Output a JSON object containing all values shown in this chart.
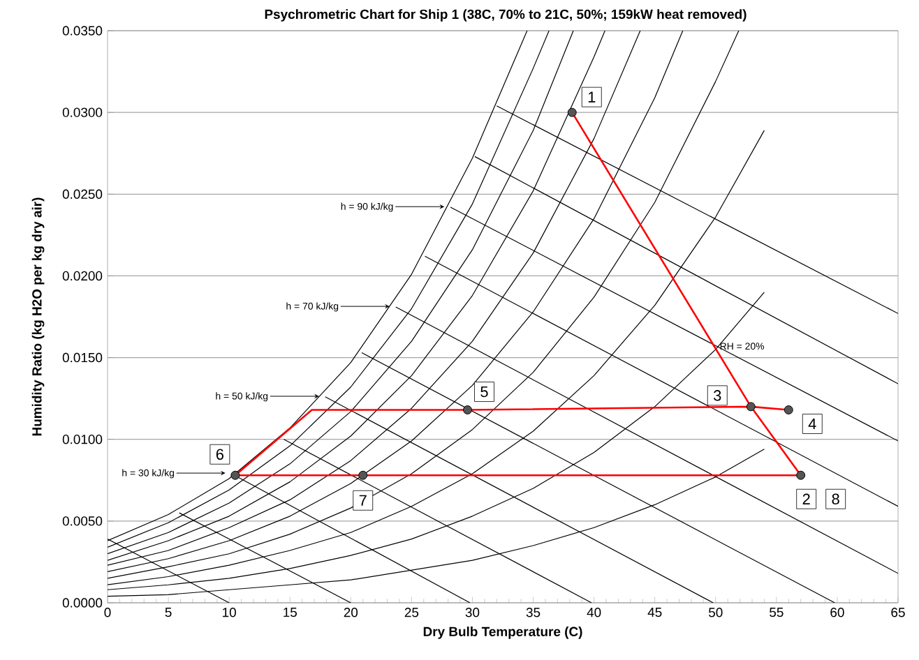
{
  "chart_data": {
    "type": "line",
    "title": "Psychrometric Chart for Ship 1 (38C, 70% to 21C, 50%; 159kW heat removed)",
    "xlabel": "Dry Bulb Temperature (C)",
    "ylabel": "Humidity Ratio (kg H2O per kg dry air)",
    "xlim": [
      0,
      65
    ],
    "ylim": [
      0,
      0.035
    ],
    "xticks": [
      0,
      5,
      10,
      15,
      20,
      25,
      30,
      35,
      40,
      45,
      50,
      55,
      60,
      65
    ],
    "yticks": [
      {
        "value": 0,
        "label": "0.0000"
      },
      {
        "value": 0.005,
        "label": "0.0050"
      },
      {
        "value": 0.01,
        "label": "0.0100"
      },
      {
        "value": 0.015,
        "label": "0.0150"
      },
      {
        "value": 0.02,
        "label": "0.0200"
      },
      {
        "value": 0.025,
        "label": "0.0250"
      },
      {
        "value": 0.03,
        "label": "0.0300"
      },
      {
        "value": 0.035,
        "label": "0.0350"
      }
    ],
    "grid": "y",
    "series": [
      {
        "color": "#000000",
        "x": [
          0,
          5,
          10,
          15,
          20,
          25,
          30,
          34.5
        ],
        "values": [
          0.0038,
          0.0054,
          0.0076,
          0.0107,
          0.0147,
          0.0201,
          0.0272,
          0.035
        ]
      },
      {
        "color": "#000000",
        "x": [
          0,
          5,
          10,
          15,
          20,
          25,
          30,
          35,
          36.3
        ],
        "values": [
          0.0034,
          0.0049,
          0.0069,
          0.0096,
          0.0132,
          0.018,
          0.0244,
          0.0327,
          0.035
        ]
      },
      {
        "color": "#000000",
        "x": [
          0,
          5,
          10,
          15,
          20,
          25,
          30,
          35,
          38.3
        ],
        "values": [
          0.003,
          0.0043,
          0.0061,
          0.0085,
          0.0117,
          0.016,
          0.0216,
          0.0289,
          0.035
        ]
      },
      {
        "color": "#000000",
        "x": [
          0,
          5,
          10,
          15,
          20,
          25,
          30,
          35,
          40,
          40.9
        ],
        "values": [
          0.0026,
          0.0038,
          0.0053,
          0.0074,
          0.0102,
          0.0139,
          0.0188,
          0.0252,
          0.0334,
          0.035
        ]
      },
      {
        "color": "#000000",
        "x": [
          0,
          5,
          10,
          15,
          20,
          25,
          30,
          35,
          40,
          43.8
        ],
        "values": [
          0.0023,
          0.0032,
          0.0046,
          0.0063,
          0.0087,
          0.0119,
          0.016,
          0.0214,
          0.0284,
          0.035
        ]
      },
      {
        "color": "#000000",
        "x": [
          0,
          5,
          10,
          15,
          20,
          25,
          30,
          35,
          40,
          45,
          47.3
        ],
        "values": [
          0.0019,
          0.0027,
          0.0038,
          0.0053,
          0.0073,
          0.0099,
          0.0133,
          0.0178,
          0.0235,
          0.0309,
          0.035
        ]
      },
      {
        "color": "#000000",
        "x": [
          0,
          5,
          10,
          15,
          20,
          25,
          30,
          35,
          40,
          45,
          50,
          51.9
        ],
        "values": [
          0.0015,
          0.0022,
          0.003,
          0.0042,
          0.0058,
          0.0079,
          0.0106,
          0.0141,
          0.0187,
          0.0245,
          0.0319,
          0.035
        ]
      },
      {
        "color": "#000000",
        "x": [
          0,
          5,
          10,
          15,
          20,
          25,
          30,
          35,
          40,
          45,
          50,
          54
        ],
        "values": [
          0.0011,
          0.0016,
          0.0023,
          0.0032,
          0.0043,
          0.0059,
          0.0079,
          0.0105,
          0.0139,
          0.0182,
          0.0236,
          0.0289
        ]
      },
      {
        "color": "#000000",
        "x": [
          0,
          5,
          10,
          15,
          20,
          25,
          30,
          35,
          40,
          45,
          50,
          54
        ],
        "values": [
          0.0008,
          0.0011,
          0.0015,
          0.0021,
          0.0029,
          0.0039,
          0.0053,
          0.007,
          0.0092,
          0.012,
          0.0155,
          0.019
        ]
      },
      {
        "color": "#000000",
        "x": [
          0,
          5,
          10,
          15,
          20,
          25,
          30,
          35,
          40,
          45,
          50,
          54
        ],
        "values": [
          0.0004,
          0.0005,
          0.0008,
          0.0011,
          0.0014,
          0.002,
          0.0026,
          0.0035,
          0.0046,
          0.006,
          0.0077,
          0.0094
        ]
      },
      {
        "color": "#000000",
        "x": [
          0,
          10
        ],
        "values": [
          0.0039,
          0
        ]
      },
      {
        "color": "#000000",
        "x": [
          5.9,
          20
        ],
        "values": [
          0.0055,
          0
        ]
      },
      {
        "color": "#000000",
        "x": [
          10.2,
          29.8
        ],
        "values": [
          0.0079,
          0
        ]
      },
      {
        "color": "#000000",
        "x": [
          14.5,
          39.8
        ],
        "values": [
          0.01,
          0
        ]
      },
      {
        "color": "#000000",
        "x": [
          17.9,
          49.8
        ],
        "values": [
          0.0126,
          0
        ]
      },
      {
        "color": "#000000",
        "x": [
          20.9,
          59.8
        ],
        "values": [
          0.0153,
          0
        ]
      },
      {
        "color": "#000000",
        "x": [
          23.7,
          65
        ],
        "values": [
          0.0181,
          0.0018
        ]
      },
      {
        "color": "#000000",
        "x": [
          26.1,
          65
        ],
        "values": [
          0.0212,
          0.0059
        ]
      },
      {
        "color": "#000000",
        "x": [
          28.2,
          65
        ],
        "values": [
          0.0242,
          0.0099
        ]
      },
      {
        "color": "#000000",
        "x": [
          30.2,
          65
        ],
        "values": [
          0.0273,
          0.0134
        ]
      },
      {
        "color": "#000000",
        "x": [
          32.0,
          65
        ],
        "values": [
          0.0304,
          0.0177
        ]
      },
      {
        "color": "#ff0000",
        "x": [
          38.2,
          52.9,
          57.0,
          21.0,
          10.5,
          16.8,
          29.6,
          52.9,
          56.0
        ],
        "values": [
          0.03,
          0.012,
          0.0078,
          0.0078,
          0.0078,
          0.0118,
          0.0118,
          0.012,
          0.0118
        ]
      },
      {
        "type": "scatter",
        "marker": "circle",
        "color": "#555555",
        "x": [
          38.2,
          52.9,
          56.0,
          29.6,
          10.5,
          21.0,
          57.0
        ],
        "values": [
          0.03,
          0.012,
          0.0118,
          0.0118,
          0.0078,
          0.0078,
          0.0078
        ]
      }
    ],
    "annotations": [
      "h = 30 kJ/kg",
      "h = 50 kJ/kg",
      "h = 70 kJ/kg",
      "h = 90 kJ/kg",
      {
        "text": "RH = 20%",
        "x": 50.2,
        "y": 0.0157
      },
      {
        "text": "1",
        "x": 38.2,
        "y": 0.03
      },
      {
        "text": "2",
        "x": 57.0,
        "y": 0.0078
      },
      {
        "text": "3",
        "x": 52.9,
        "y": 0.012
      },
      {
        "text": "4",
        "x": 56.0,
        "y": 0.0118
      },
      {
        "text": "5",
        "x": 29.6,
        "y": 0.0118
      },
      {
        "text": "6",
        "x": 10.5,
        "y": 0.0078
      },
      {
        "text": "7",
        "x": 21.0,
        "y": 0.0078
      },
      {
        "text": "8",
        "x": 57.0,
        "y": 0.0078
      }
    ]
  }
}
